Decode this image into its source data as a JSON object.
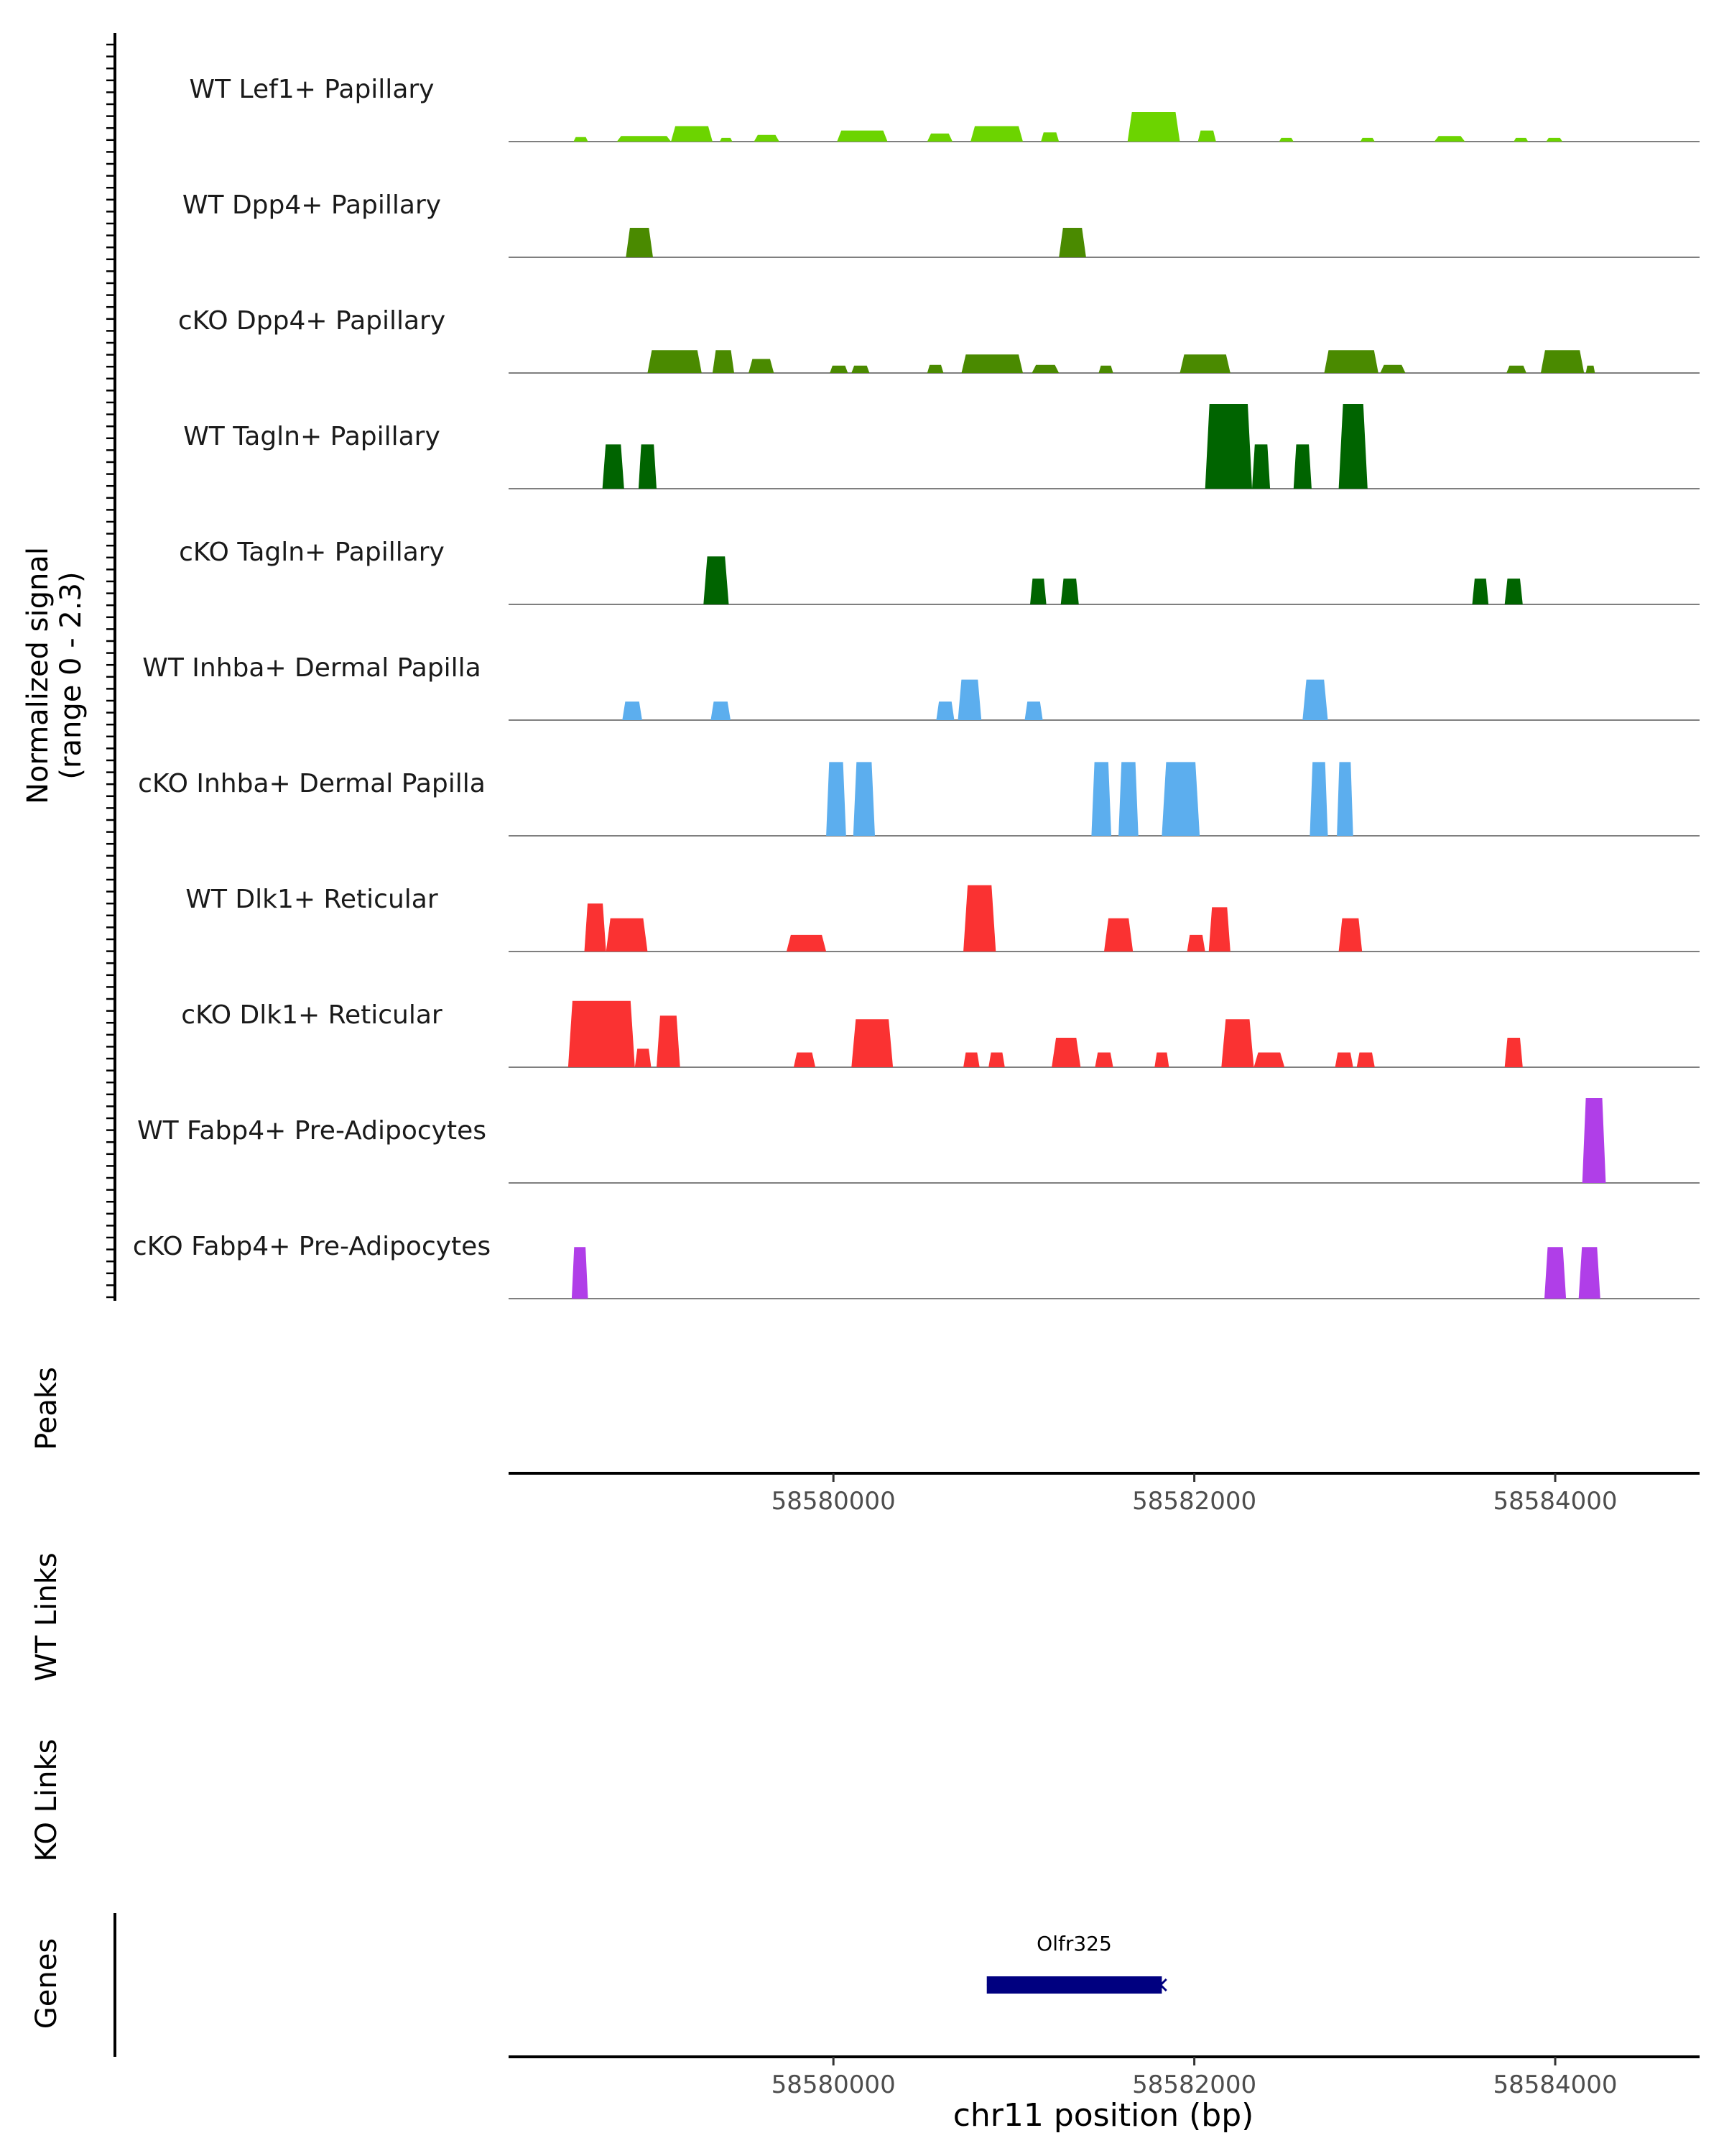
{
  "chart_data": {
    "type": "area",
    "title": "",
    "ylabel_line1": "Normalized signal",
    "ylabel_line2": "(range 0 - 2.3)",
    "yrange": [
      0,
      2.3
    ],
    "xlim": [
      58578200,
      58584800
    ],
    "xlabel": "chr11 position (bp)",
    "xticks": [
      58580000,
      58582000,
      58584000
    ],
    "xtick_labels": [
      "58580000",
      "58582000",
      "58584000"
    ],
    "tracks": [
      {
        "label": "WT Lef1+ Papillary",
        "color": "#6cd400",
        "peaks": [
          {
            "start": 58578560,
            "end": 58578640,
            "h": 0.12
          },
          {
            "start": 58578800,
            "end": 58579100,
            "h": 0.15
          },
          {
            "start": 58579100,
            "end": 58579330,
            "h": 0.42
          },
          {
            "start": 58579370,
            "end": 58579440,
            "h": 0.1
          },
          {
            "start": 58579560,
            "end": 58579700,
            "h": 0.18
          },
          {
            "start": 58580020,
            "end": 58580300,
            "h": 0.3
          },
          {
            "start": 58580520,
            "end": 58580660,
            "h": 0.22
          },
          {
            "start": 58580760,
            "end": 58581050,
            "h": 0.42
          },
          {
            "start": 58581150,
            "end": 58581250,
            "h": 0.25
          },
          {
            "start": 58581630,
            "end": 58581920,
            "h": 0.8
          },
          {
            "start": 58582020,
            "end": 58582120,
            "h": 0.3
          },
          {
            "start": 58582470,
            "end": 58582550,
            "h": 0.1
          },
          {
            "start": 58582920,
            "end": 58583000,
            "h": 0.1
          },
          {
            "start": 58583330,
            "end": 58583500,
            "h": 0.15
          },
          {
            "start": 58583770,
            "end": 58583850,
            "h": 0.1
          },
          {
            "start": 58583950,
            "end": 58584040,
            "h": 0.1
          }
        ]
      },
      {
        "label": "WT Dpp4+ Papillary",
        "color": "#4a8a00",
        "peaks": [
          {
            "start": 58578850,
            "end": 58579000,
            "h": 0.8
          },
          {
            "start": 58581250,
            "end": 58581400,
            "h": 0.8
          }
        ]
      },
      {
        "label": "cKO Dpp4+ Papillary",
        "color": "#4a8a00",
        "peaks": [
          {
            "start": 58578970,
            "end": 58579270,
            "h": 0.62
          },
          {
            "start": 58579330,
            "end": 58579450,
            "h": 0.62
          },
          {
            "start": 58579530,
            "end": 58579670,
            "h": 0.38
          },
          {
            "start": 58579980,
            "end": 58580080,
            "h": 0.2
          },
          {
            "start": 58580100,
            "end": 58580200,
            "h": 0.2
          },
          {
            "start": 58580520,
            "end": 58580610,
            "h": 0.22
          },
          {
            "start": 58580710,
            "end": 58581050,
            "h": 0.5
          },
          {
            "start": 58581100,
            "end": 58581250,
            "h": 0.22
          },
          {
            "start": 58581470,
            "end": 58581550,
            "h": 0.2
          },
          {
            "start": 58581920,
            "end": 58582200,
            "h": 0.5
          },
          {
            "start": 58582720,
            "end": 58583020,
            "h": 0.62
          },
          {
            "start": 58583030,
            "end": 58583170,
            "h": 0.22
          },
          {
            "start": 58583730,
            "end": 58583840,
            "h": 0.2
          },
          {
            "start": 58583920,
            "end": 58584160,
            "h": 0.62
          },
          {
            "start": 58584170,
            "end": 58584220,
            "h": 0.2
          }
        ]
      },
      {
        "label": "WT Tagln+ Papillary",
        "color": "#006400",
        "peaks": [
          {
            "start": 58578720,
            "end": 58578840,
            "h": 1.2
          },
          {
            "start": 58578920,
            "end": 58579020,
            "h": 1.2
          },
          {
            "start": 58582060,
            "end": 58582320,
            "h": 2.3
          },
          {
            "start": 58582320,
            "end": 58582420,
            "h": 1.2
          },
          {
            "start": 58582550,
            "end": 58582650,
            "h": 1.2
          },
          {
            "start": 58582800,
            "end": 58582960,
            "h": 2.3
          }
        ]
      },
      {
        "label": "cKO Tagln+ Papillary",
        "color": "#006400",
        "peaks": [
          {
            "start": 58579280,
            "end": 58579420,
            "h": 1.3
          },
          {
            "start": 58581090,
            "end": 58581180,
            "h": 0.7
          },
          {
            "start": 58581260,
            "end": 58581360,
            "h": 0.7
          },
          {
            "start": 58583540,
            "end": 58583630,
            "h": 0.7
          },
          {
            "start": 58583720,
            "end": 58583820,
            "h": 0.7
          }
        ]
      },
      {
        "label": "WT Inhba+ Dermal Papilla",
        "color": "#5caeee",
        "peaks": [
          {
            "start": 58578830,
            "end": 58578940,
            "h": 0.5
          },
          {
            "start": 58579320,
            "end": 58579430,
            "h": 0.5
          },
          {
            "start": 58580570,
            "end": 58580670,
            "h": 0.5
          },
          {
            "start": 58580690,
            "end": 58580820,
            "h": 1.1
          },
          {
            "start": 58581060,
            "end": 58581160,
            "h": 0.5
          },
          {
            "start": 58582600,
            "end": 58582740,
            "h": 1.1
          }
        ]
      },
      {
        "label": "cKO Inhba+ Dermal Papilla",
        "color": "#5caeee",
        "peaks": [
          {
            "start": 58579960,
            "end": 58580070,
            "h": 2.0
          },
          {
            "start": 58580110,
            "end": 58580230,
            "h": 2.0
          },
          {
            "start": 58581430,
            "end": 58581540,
            "h": 2.0
          },
          {
            "start": 58581580,
            "end": 58581690,
            "h": 2.0
          },
          {
            "start": 58581820,
            "end": 58582030,
            "h": 2.0
          },
          {
            "start": 58582640,
            "end": 58582740,
            "h": 2.0
          },
          {
            "start": 58582790,
            "end": 58582880,
            "h": 2.0
          }
        ]
      },
      {
        "label": "WT Dlk1+ Reticular",
        "color": "#fa3232",
        "peaks": [
          {
            "start": 58578620,
            "end": 58578740,
            "h": 1.3
          },
          {
            "start": 58578740,
            "end": 58578970,
            "h": 0.9
          },
          {
            "start": 58579740,
            "end": 58579960,
            "h": 0.45
          },
          {
            "start": 58580720,
            "end": 58580900,
            "h": 1.8
          },
          {
            "start": 58581500,
            "end": 58581660,
            "h": 0.9
          },
          {
            "start": 58581960,
            "end": 58582060,
            "h": 0.45
          },
          {
            "start": 58582080,
            "end": 58582200,
            "h": 1.2
          },
          {
            "start": 58582800,
            "end": 58582930,
            "h": 0.9
          }
        ]
      },
      {
        "label": "cKO Dlk1+ Reticular",
        "color": "#fa3232",
        "peaks": [
          {
            "start": 58578530,
            "end": 58578900,
            "h": 1.8
          },
          {
            "start": 58578900,
            "end": 58578990,
            "h": 0.5
          },
          {
            "start": 58579020,
            "end": 58579150,
            "h": 1.4
          },
          {
            "start": 58579780,
            "end": 58579900,
            "h": 0.4
          },
          {
            "start": 58580100,
            "end": 58580330,
            "h": 1.3
          },
          {
            "start": 58580720,
            "end": 58580810,
            "h": 0.4
          },
          {
            "start": 58580860,
            "end": 58580950,
            "h": 0.4
          },
          {
            "start": 58581210,
            "end": 58581370,
            "h": 0.8
          },
          {
            "start": 58581450,
            "end": 58581550,
            "h": 0.4
          },
          {
            "start": 58581780,
            "end": 58581860,
            "h": 0.4
          },
          {
            "start": 58582150,
            "end": 58582330,
            "h": 1.3
          },
          {
            "start": 58582330,
            "end": 58582500,
            "h": 0.4
          },
          {
            "start": 58582780,
            "end": 58582880,
            "h": 0.4
          },
          {
            "start": 58582900,
            "end": 58583000,
            "h": 0.4
          },
          {
            "start": 58583720,
            "end": 58583820,
            "h": 0.8
          }
        ]
      },
      {
        "label": "WT Fabp4+ Pre-Adipocytes",
        "color": "#b03ee8",
        "peaks": [
          {
            "start": 58584150,
            "end": 58584280,
            "h": 2.3
          }
        ]
      },
      {
        "label": "cKO Fabp4+ Pre-Adipocytes",
        "color": "#b03ee8",
        "peaks": [
          {
            "start": 58578550,
            "end": 58578640,
            "h": 1.4
          },
          {
            "start": 58583940,
            "end": 58584060,
            "h": 1.4
          },
          {
            "start": 58584130,
            "end": 58584250,
            "h": 1.4
          }
        ]
      }
    ],
    "panels": {
      "peaks_label": "Peaks",
      "wt_links_label": "WT Links",
      "ko_links_label": "KO Links",
      "genes_label": "Genes"
    },
    "genes": [
      {
        "name": "Olfr325",
        "start": 58580850,
        "end": 58581820,
        "strand": "-",
        "color": "#000080"
      }
    ]
  }
}
